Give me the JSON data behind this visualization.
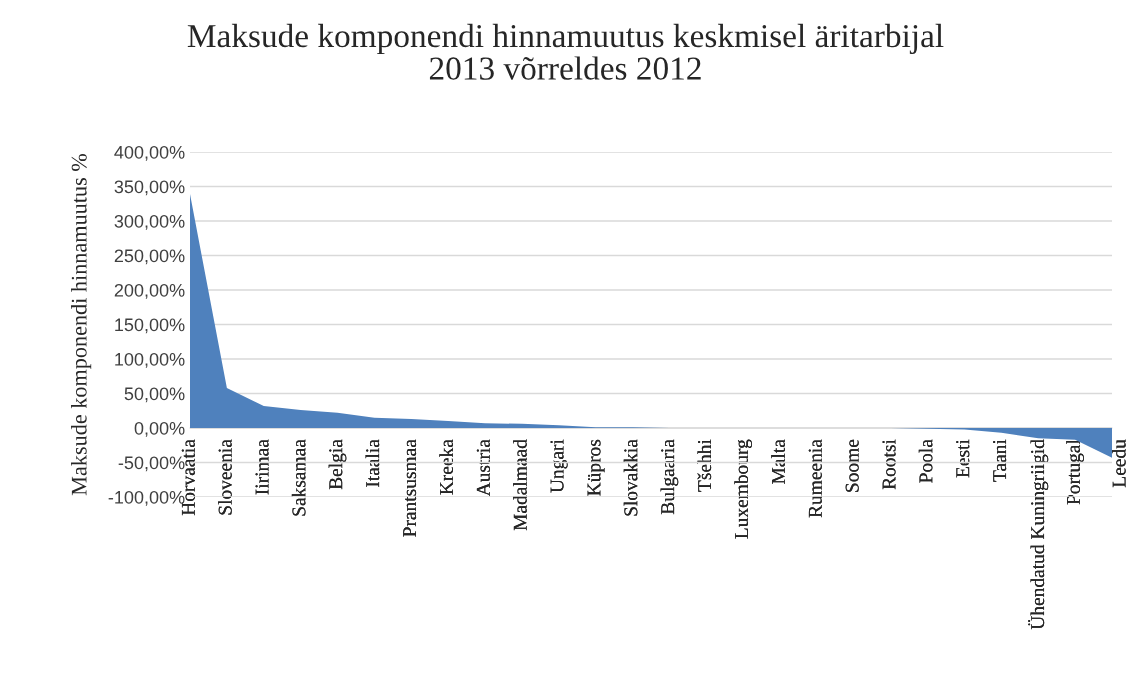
{
  "chart_data": {
    "type": "area",
    "title": "Maksude komponendi hinnamuutus keskmisel äritarbijal\n2013 võrreldes 2012",
    "ylabel": "Maksude komponendi hinnamuutus %",
    "categories": [
      "Horvaatia",
      "Sloveenia",
      "Iirimaa",
      "Saksamaa",
      "Belgia",
      "Itaalia",
      "Prantsusmaa",
      "Kreeka",
      "Austria",
      "Madalmaad",
      "Ungari",
      "Küpros",
      "Slovakkia",
      "Bulgaaria",
      "Tšehhi",
      "Luxembourg",
      "Malta",
      "Rumeenia",
      "Soome",
      "Rootsi",
      "Poola",
      "Eesti",
      "Taani",
      "Ühendatud Kuningriigid",
      "Portugal",
      "Leedu"
    ],
    "series": [
      {
        "color": "#4f81bd",
        "values": [
          339,
          58,
          32,
          26,
          22,
          15,
          13,
          10,
          7,
          6,
          4,
          1,
          1,
          0,
          0,
          0,
          0,
          0,
          0,
          0,
          -1,
          -2,
          -7,
          -15,
          -17,
          -43
        ]
      }
    ],
    "ylim": [
      -100,
      400
    ],
    "yticks": [
      {
        "value": -100,
        "label": "-100,00%"
      },
      {
        "value": -50,
        "label": "-50,00%"
      },
      {
        "value": 0,
        "label": "0,00%"
      },
      {
        "value": 50,
        "label": "50,00%"
      },
      {
        "value": 100,
        "label": "100,00%"
      },
      {
        "value": 150,
        "label": "150,00%"
      },
      {
        "value": 200,
        "label": "200,00%"
      },
      {
        "value": 250,
        "label": "250,00%"
      },
      {
        "value": 300,
        "label": "300,00%"
      },
      {
        "value": 350,
        "label": "350,00%"
      },
      {
        "value": 400,
        "label": "400,00%"
      }
    ],
    "grid": "y"
  }
}
